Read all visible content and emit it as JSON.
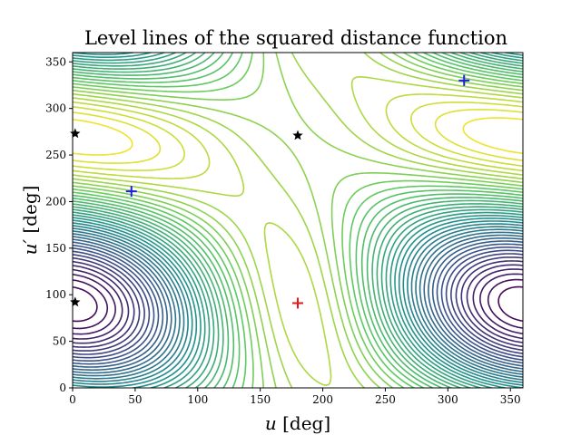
{
  "chart_data": {
    "type": "contour",
    "title": "Level lines of the squared distance function",
    "xlabel_main": "u",
    "xlabel_unit": " [deg]",
    "ylabel_main": "u′",
    "ylabel_unit": " [deg]",
    "xlim": [
      0,
      360
    ],
    "ylim": [
      0,
      360
    ],
    "xticks": [
      "0",
      "50",
      "100",
      "150",
      "200",
      "250",
      "300",
      "350"
    ],
    "yticks": [
      "0",
      "50",
      "100",
      "150",
      "200",
      "250",
      "300",
      "350"
    ],
    "grid": false,
    "colormap": "viridis",
    "colormap_stops": [
      "#440154",
      "#3b528b",
      "#21918c",
      "#5ec962",
      "#fde725"
    ],
    "levels": 40,
    "markers": [
      {
        "kind": "minimum",
        "symbol": "plus",
        "color": "#e31a1c",
        "x": 180,
        "y": 91
      },
      {
        "kind": "maximum",
        "symbol": "plus",
        "color": "#1f1fd6",
        "x": 47,
        "y": 211
      },
      {
        "kind": "maximum",
        "symbol": "plus",
        "color": "#1f1fd6",
        "x": 313,
        "y": 330
      },
      {
        "kind": "saddle",
        "symbol": "star",
        "color": "#000000",
        "x": 180,
        "y": 271
      },
      {
        "kind": "saddle",
        "symbol": "star",
        "color": "#000000",
        "x": 2,
        "y": 273
      },
      {
        "kind": "saddle",
        "symbol": "star",
        "color": "#000000",
        "x": 2,
        "y": 92
      }
    ]
  }
}
